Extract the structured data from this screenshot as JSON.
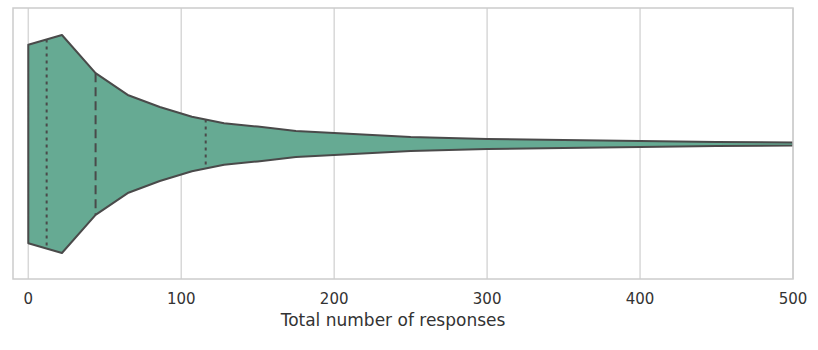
{
  "chart_data": {
    "type": "violin",
    "xlabel": "Total number of responses",
    "x": [
      0,
      22,
      44,
      65,
      86,
      107,
      128,
      150,
      175,
      200,
      250,
      300,
      350,
      400,
      450,
      500
    ],
    "density": [
      0.91,
      1.0,
      0.65,
      0.45,
      0.34,
      0.25,
      0.19,
      0.16,
      0.12,
      0.1,
      0.064,
      0.046,
      0.037,
      0.028,
      0.018,
      0.014
    ],
    "quartiles": [
      12,
      44,
      116
    ],
    "xlim": [
      -10,
      500
    ],
    "xticks": [
      0,
      100,
      200,
      300,
      400,
      500
    ],
    "color": "#66aa93",
    "grid": true,
    "tick_labels": "x"
  }
}
